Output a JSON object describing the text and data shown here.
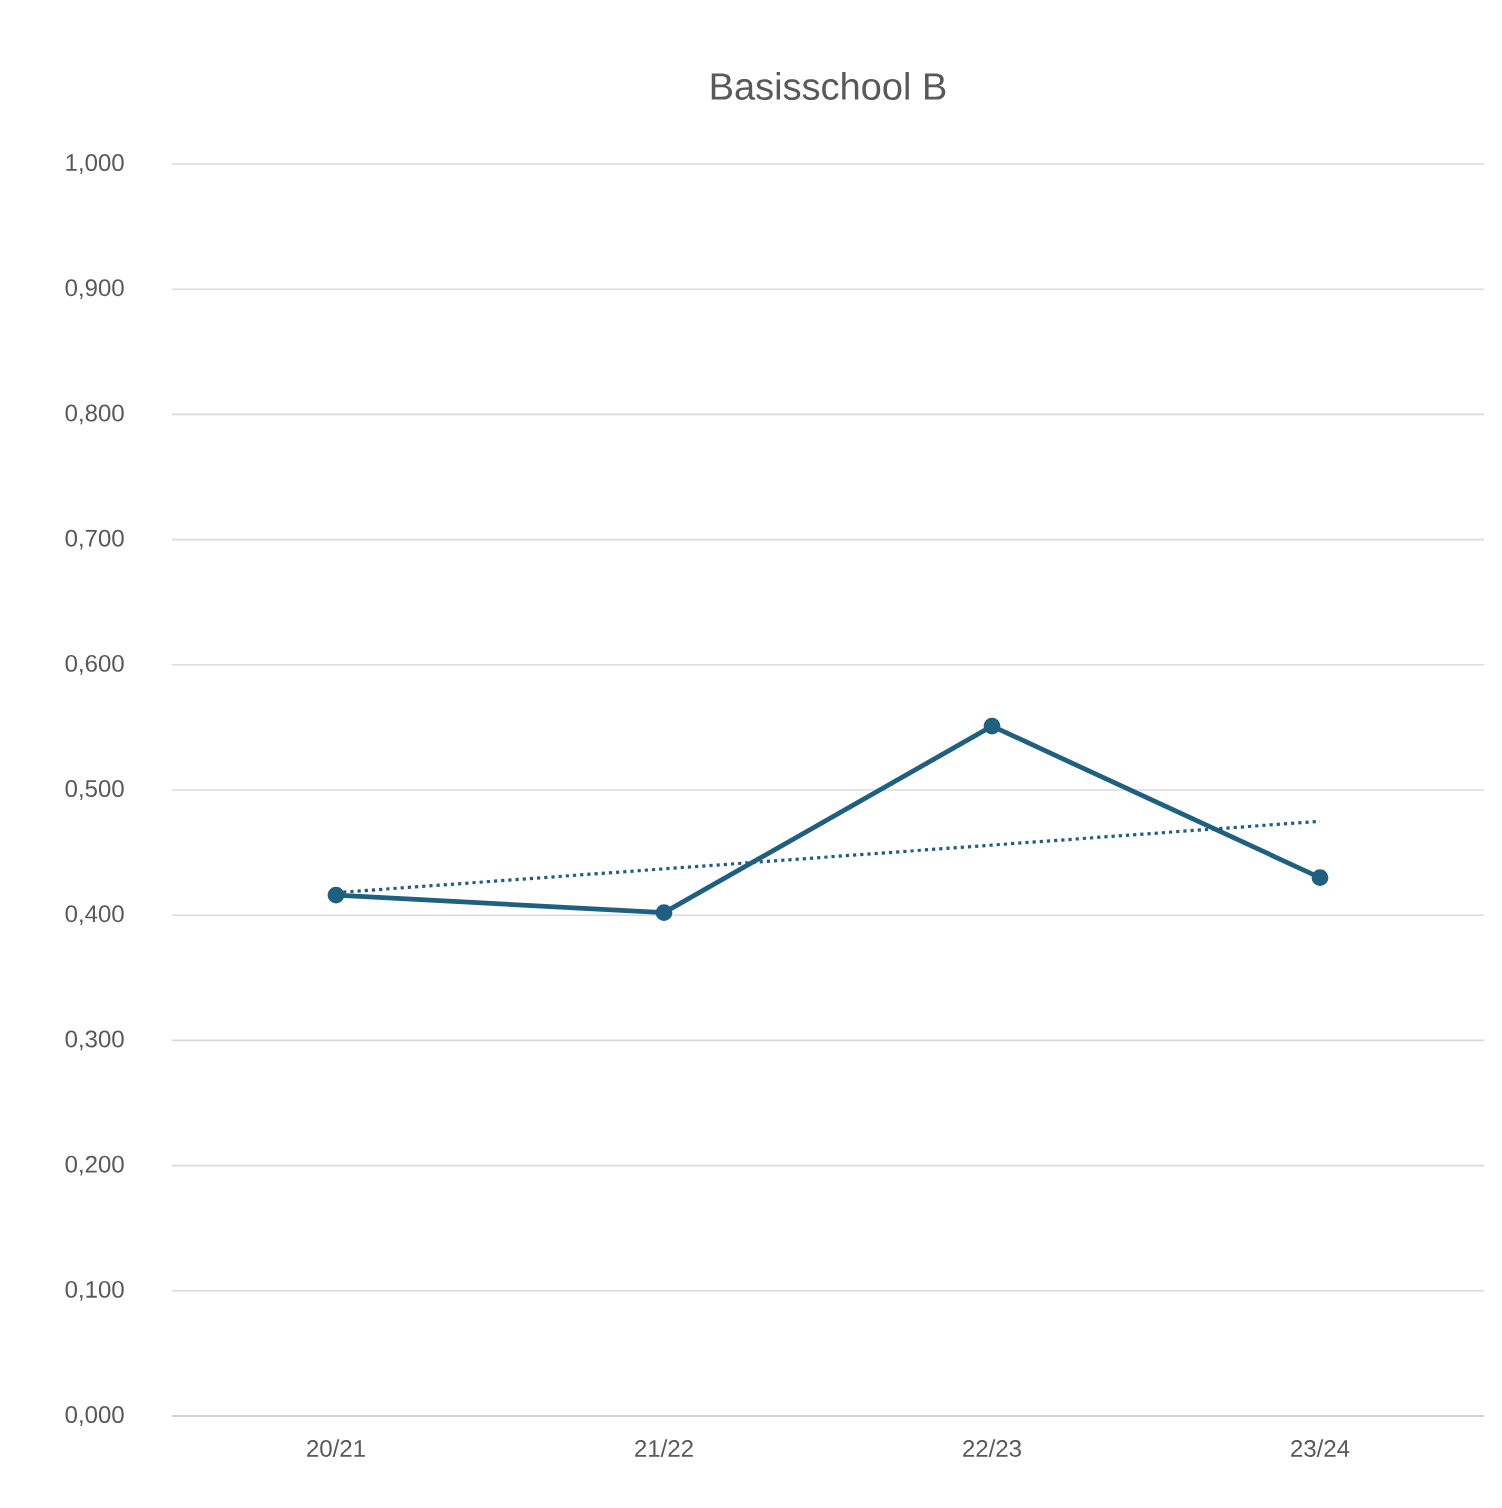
{
  "chart_data": {
    "type": "line",
    "title": "Basisschool B",
    "categories": [
      "20/21",
      "21/22",
      "22/23",
      "23/24"
    ],
    "series": [
      {
        "color": "#1f5f80",
        "values": [
          0.416,
          0.402,
          0.551,
          0.43
        ],
        "marker": "circle",
        "line_style": "solid"
      },
      {
        "type": "line",
        "color": "#1f5f80",
        "values": [
          0.418,
          0.437,
          0.456,
          0.475
        ],
        "marker": "none",
        "line_style": "dotted"
      }
    ],
    "ylim": [
      0,
      1
    ],
    "yticks": [
      {
        "value": 0,
        "label": "0,000"
      },
      {
        "value": 0.1,
        "label": "0,100"
      },
      {
        "value": 0.2,
        "label": "0,200"
      },
      {
        "value": 0.3,
        "label": "0,300"
      },
      {
        "value": 0.4,
        "label": "0,400"
      },
      {
        "value": 0.5,
        "label": "0,500"
      },
      {
        "value": 0.6,
        "label": "0,600"
      },
      {
        "value": 0.7,
        "label": "0,700"
      },
      {
        "value": 0.8,
        "label": "0,800"
      },
      {
        "value": 0.9,
        "label": "0,900"
      },
      {
        "value": 1,
        "label": "1,000"
      }
    ],
    "grid": "y"
  }
}
